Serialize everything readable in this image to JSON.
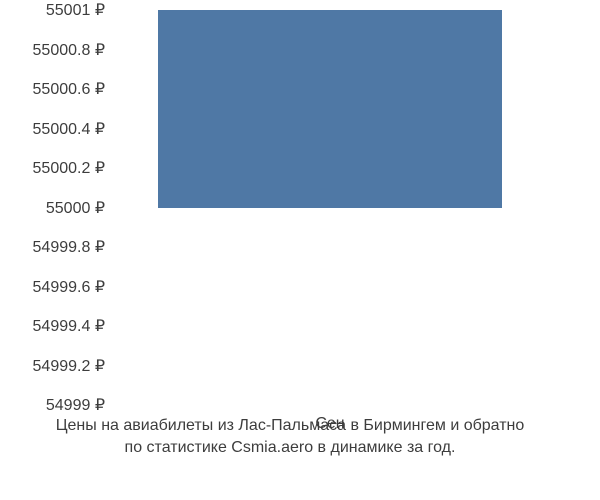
{
  "chart": {
    "type": "bar",
    "background_color": "#ffffff",
    "bar_color": "#4f78a5",
    "text_color": "#3d3d3d",
    "font_size": 16,
    "ylim": [
      54999,
      55001
    ],
    "yticks": [
      {
        "v": 55001,
        "label": "55001 ₽"
      },
      {
        "v": 55000.8,
        "label": "55000.8 ₽"
      },
      {
        "v": 55000.6,
        "label": "55000.6 ₽"
      },
      {
        "v": 55000.4,
        "label": "55000.4 ₽"
      },
      {
        "v": 55000.2,
        "label": "55000.2 ₽"
      },
      {
        "v": 55000,
        "label": "55000 ₽"
      },
      {
        "v": 54999.8,
        "label": "54999.8 ₽"
      },
      {
        "v": 54999.6,
        "label": "54999.6 ₽"
      },
      {
        "v": 54999.4,
        "label": "54999.4 ₽"
      },
      {
        "v": 54999.2,
        "label": "54999.2 ₽"
      },
      {
        "v": 54999,
        "label": "54999 ₽"
      }
    ],
    "bars": [
      {
        "category": "Сен",
        "value": 55001,
        "center_frac": 0.5,
        "width_frac": 0.78
      }
    ],
    "caption_line1": "Цены на авиабилеты из Лас-Пальмаса в Бирмингем и обратно",
    "caption_line2": "по статистике Csmia.aero в динамике за год."
  }
}
